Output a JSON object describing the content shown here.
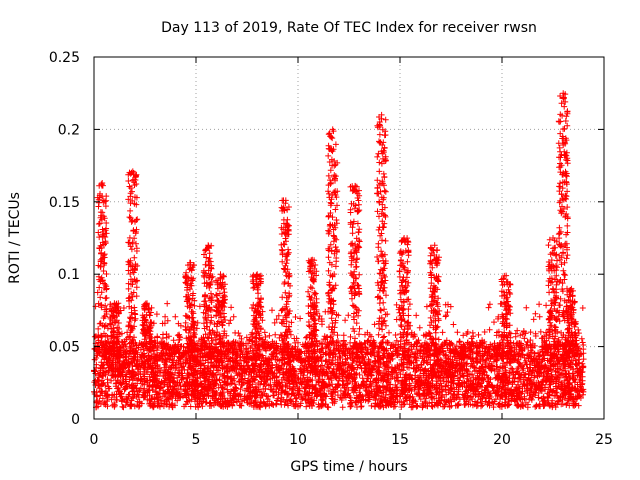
{
  "chart_data": {
    "type": "scatter",
    "title": "Day 113 of 2019, Rate Of TEC Index for receiver rwsn",
    "xlabel": "GPS time / hours",
    "ylabel": "ROTI / TECUs",
    "xlim": [
      0,
      25
    ],
    "ylim": [
      0,
      0.25
    ],
    "x_ticks": [
      0,
      5,
      10,
      15,
      20,
      25
    ],
    "x_tick_labels": [
      "0",
      "5",
      "10",
      "15",
      "20",
      "25"
    ],
    "y_ticks": [
      0,
      0.05,
      0.1,
      0.15,
      0.2,
      0.25
    ],
    "y_tick_labels": [
      "0",
      "0.05",
      "0.1",
      "0.15",
      "0.2",
      "0.25"
    ],
    "grid": true,
    "marker": "+",
    "color": "#ff0000",
    "series": [
      {
        "name": "ROTI",
        "generated_background": {
          "x_range": [
            0,
            24
          ],
          "y_base_range": [
            0.01,
            0.05
          ],
          "count": 5200
        },
        "bursts": [
          {
            "x": 0.4,
            "peak": 0.163
          },
          {
            "x": 1.0,
            "peak": 0.08
          },
          {
            "x": 1.9,
            "peak": 0.171
          },
          {
            "x": 2.6,
            "peak": 0.08
          },
          {
            "x": 4.7,
            "peak": 0.108
          },
          {
            "x": 5.6,
            "peak": 0.12
          },
          {
            "x": 6.2,
            "peak": 0.1
          },
          {
            "x": 8.0,
            "peak": 0.1
          },
          {
            "x": 9.4,
            "peak": 0.151
          },
          {
            "x": 10.7,
            "peak": 0.11
          },
          {
            "x": 11.7,
            "peak": 0.2
          },
          {
            "x": 12.8,
            "peak": 0.161
          },
          {
            "x": 14.1,
            "peak": 0.21
          },
          {
            "x": 15.2,
            "peak": 0.125
          },
          {
            "x": 16.7,
            "peak": 0.12
          },
          {
            "x": 20.2,
            "peak": 0.099
          },
          {
            "x": 22.5,
            "peak": 0.125
          },
          {
            "x": 23.0,
            "peak": 0.225
          },
          {
            "x": 23.4,
            "peak": 0.09
          }
        ]
      }
    ]
  }
}
